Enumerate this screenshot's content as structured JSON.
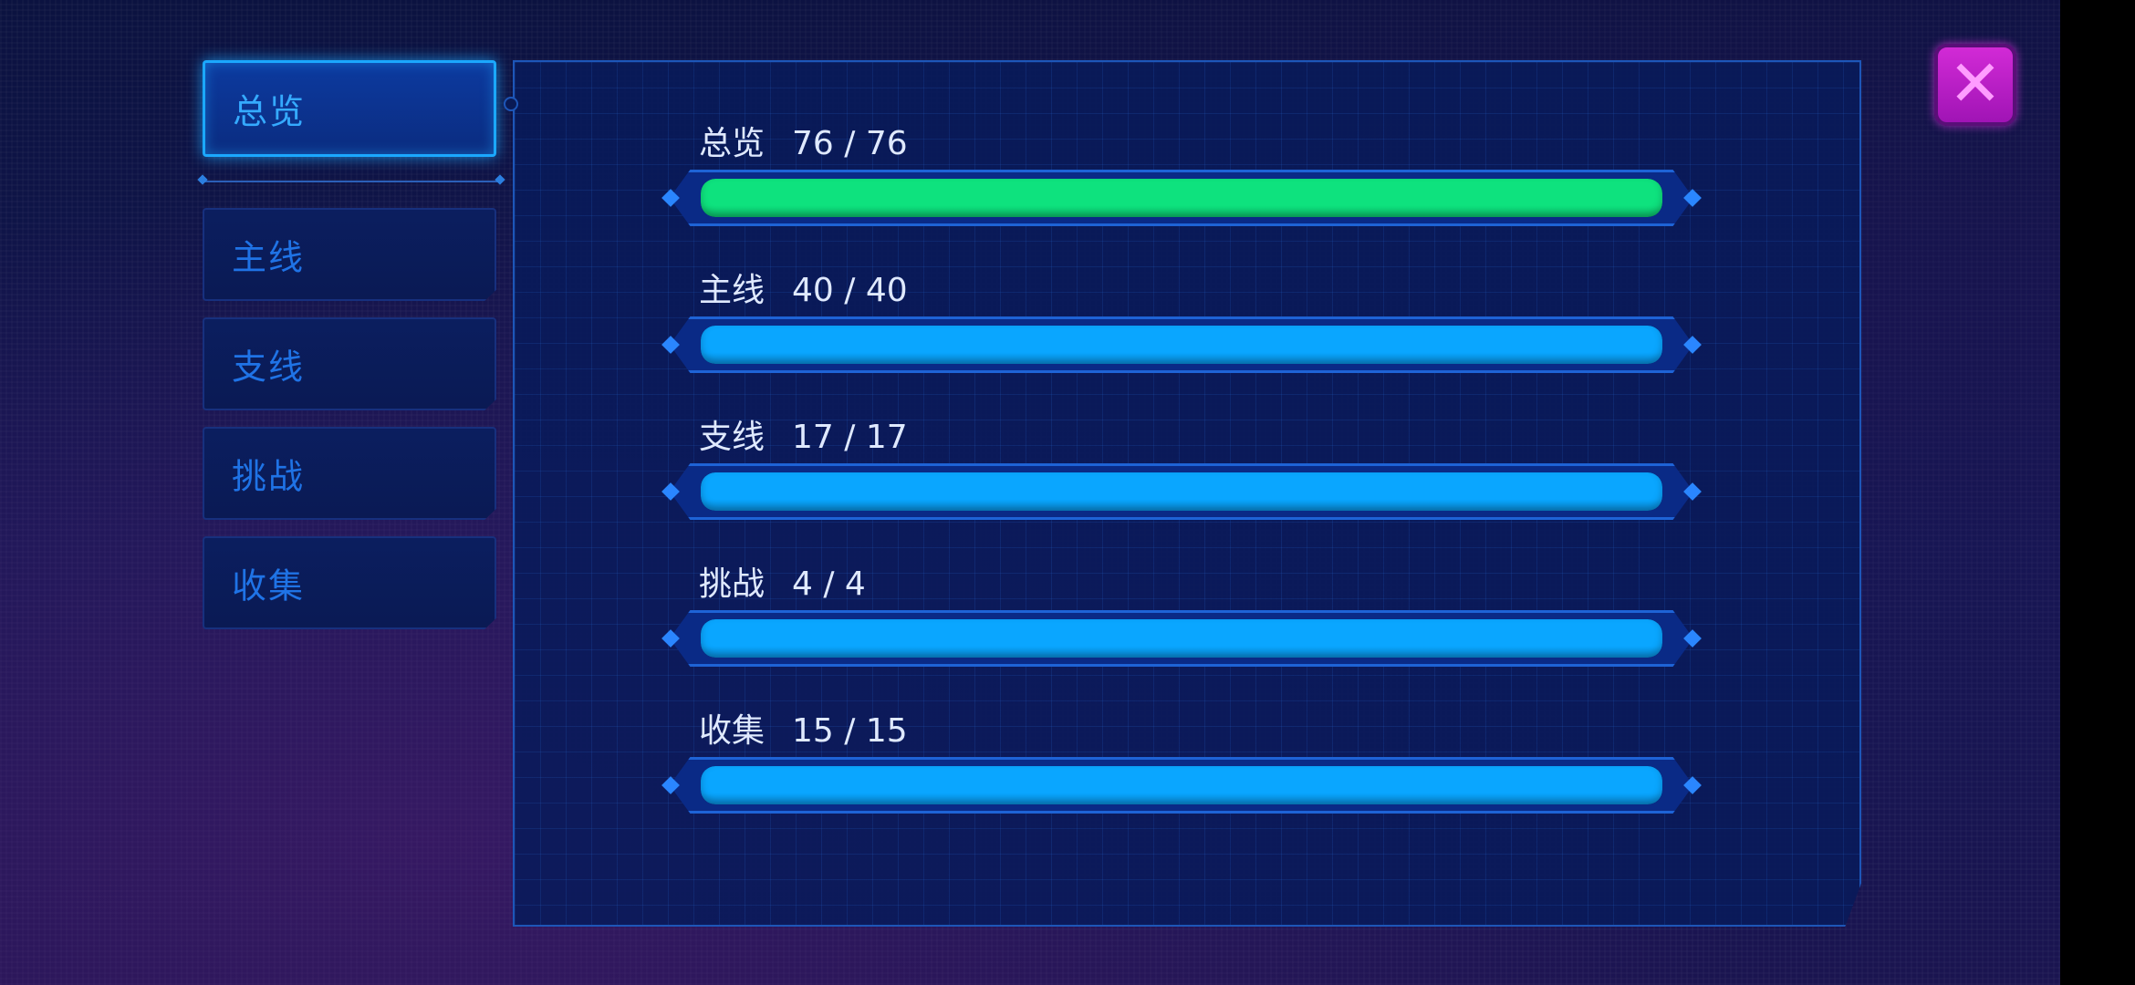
{
  "tabs": [
    {
      "label": "总览",
      "active": true
    },
    {
      "label": "主线",
      "active": false
    },
    {
      "label": "支线",
      "active": false
    },
    {
      "label": "挑战",
      "active": false
    },
    {
      "label": "收集",
      "active": false
    }
  ],
  "progress": [
    {
      "label": "总览",
      "count": "76 / 76",
      "fraction": 1.0,
      "color": "#0ee27e"
    },
    {
      "label": "主线",
      "count": "40 / 40",
      "fraction": 1.0,
      "color": "#0aa6ff"
    },
    {
      "label": "支线",
      "count": "17 / 17",
      "fraction": 1.0,
      "color": "#0aa6ff"
    },
    {
      "label": "挑战",
      "count": "4 / 4",
      "fraction": 1.0,
      "color": "#0aa6ff"
    },
    {
      "label": "收集",
      "count": "15 / 15",
      "fraction": 1.0,
      "color": "#0aa6ff"
    }
  ],
  "close_icon": "close-x-icon"
}
